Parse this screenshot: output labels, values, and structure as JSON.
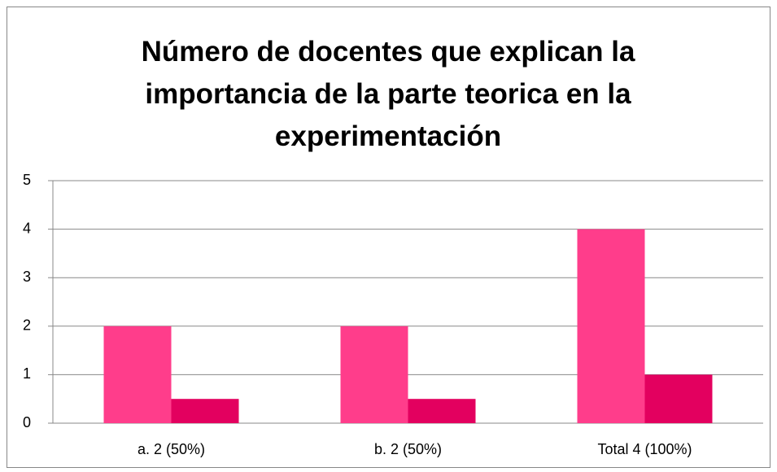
{
  "chart_data": {
    "type": "bar",
    "title": "Número de docentes que explican la importancia de la parte teorica en la experimentación",
    "categories": [
      "a. 2 (50%)",
      "b. 2 (50%)",
      "Total 4 (100%)"
    ],
    "series": [
      {
        "color": "#ff3d8b",
        "values": [
          2,
          2,
          4
        ]
      },
      {
        "color": "#e3005f",
        "values": [
          0.5,
          0.5,
          1
        ]
      }
    ],
    "ylim": [
      0,
      5
    ],
    "yticks": [
      0,
      1,
      2,
      3,
      4,
      5
    ],
    "grid": true
  }
}
